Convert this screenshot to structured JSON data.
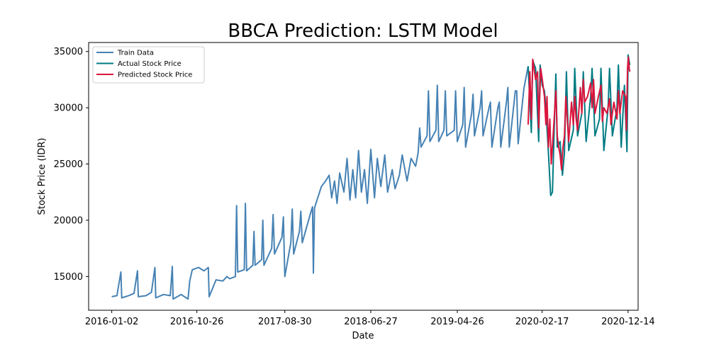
{
  "chart_data": {
    "type": "line",
    "title": "BBCA Prediction: LSTM Model",
    "xlabel": "Date",
    "ylabel": "Stock Price (IDR)",
    "x_ticks": [
      "2016-01-02",
      "2016-10-26",
      "2017-08-30",
      "2018-06-27",
      "2019-04-26",
      "2020-02-17",
      "2020-12-14"
    ],
    "y_ticks": [
      15000,
      20000,
      25000,
      30000,
      35000
    ],
    "xlim": [
      "2015-10-13",
      "2021-01-18"
    ],
    "ylim": [
      12000,
      35800
    ],
    "grid": false,
    "legend_position": "top-left",
    "series": [
      {
        "name": "Train Data",
        "color": "#4682b4",
        "points": [
          [
            "2016-01-02",
            13200
          ],
          [
            "2016-01-20",
            13300
          ],
          [
            "2016-02-03",
            15400
          ],
          [
            "2016-02-06",
            13100
          ],
          [
            "2016-03-01",
            13300
          ],
          [
            "2016-03-20",
            13500
          ],
          [
            "2016-04-01",
            15500
          ],
          [
            "2016-04-04",
            13200
          ],
          [
            "2016-05-01",
            13300
          ],
          [
            "2016-05-20",
            13600
          ],
          [
            "2016-06-01",
            15800
          ],
          [
            "2016-06-04",
            13100
          ],
          [
            "2016-07-01",
            13400
          ],
          [
            "2016-07-25",
            13300
          ],
          [
            "2016-08-01",
            15900
          ],
          [
            "2016-08-04",
            13000
          ],
          [
            "2016-09-01",
            13400
          ],
          [
            "2016-09-25",
            13000
          ],
          [
            "2016-10-01",
            14600
          ],
          [
            "2016-10-10",
            15600
          ],
          [
            "2016-11-01",
            15800
          ],
          [
            "2016-11-20",
            15500
          ],
          [
            "2016-12-05",
            15800
          ],
          [
            "2016-12-08",
            13200
          ],
          [
            "2017-01-01",
            14700
          ],
          [
            "2017-01-25",
            14600
          ],
          [
            "2017-02-08",
            15000
          ],
          [
            "2017-02-18",
            14800
          ],
          [
            "2017-03-10",
            15000
          ],
          [
            "2017-03-14",
            21300
          ],
          [
            "2017-03-18",
            15400
          ],
          [
            "2017-04-10",
            15600
          ],
          [
            "2017-04-14",
            21500
          ],
          [
            "2017-04-18",
            15500
          ],
          [
            "2017-05-10",
            16000
          ],
          [
            "2017-05-14",
            19000
          ],
          [
            "2017-05-18",
            16000
          ],
          [
            "2017-06-10",
            16500
          ],
          [
            "2017-06-14",
            20000
          ],
          [
            "2017-06-18",
            16000
          ],
          [
            "2017-07-15",
            17500
          ],
          [
            "2017-07-20",
            20500
          ],
          [
            "2017-07-25",
            17000
          ],
          [
            "2017-08-20",
            18500
          ],
          [
            "2017-08-25",
            20300
          ],
          [
            "2017-08-30",
            15000
          ],
          [
            "2017-09-20",
            18000
          ],
          [
            "2017-09-25",
            21000
          ],
          [
            "2017-09-30",
            17000
          ],
          [
            "2017-10-20",
            19000
          ],
          [
            "2017-10-25",
            20800
          ],
          [
            "2017-10-30",
            18000
          ],
          [
            "2017-11-30",
            20800
          ],
          [
            "2017-12-05",
            21200
          ],
          [
            "2017-12-08",
            15300
          ],
          [
            "2017-12-12",
            21100
          ],
          [
            "2018-01-05",
            23000
          ],
          [
            "2018-01-20",
            23500
          ],
          [
            "2018-02-01",
            24000
          ],
          [
            "2018-02-10",
            22000
          ],
          [
            "2018-02-20",
            23500
          ],
          [
            "2018-03-01",
            21500
          ],
          [
            "2018-03-10",
            24200
          ],
          [
            "2018-03-25",
            22500
          ],
          [
            "2018-04-05",
            25500
          ],
          [
            "2018-04-15",
            21800
          ],
          [
            "2018-04-25",
            24500
          ],
          [
            "2018-05-05",
            22000
          ],
          [
            "2018-05-15",
            26200
          ],
          [
            "2018-05-25",
            22500
          ],
          [
            "2018-06-05",
            24500
          ],
          [
            "2018-06-15",
            21500
          ],
          [
            "2018-06-27",
            26300
          ],
          [
            "2018-07-10",
            22000
          ],
          [
            "2018-07-20",
            25500
          ],
          [
            "2018-08-01",
            23000
          ],
          [
            "2018-08-15",
            25800
          ],
          [
            "2018-08-25",
            22500
          ],
          [
            "2018-09-10",
            24500
          ],
          [
            "2018-09-20",
            22800
          ],
          [
            "2018-10-05",
            24000
          ],
          [
            "2018-10-15",
            25800
          ],
          [
            "2018-11-01",
            23500
          ],
          [
            "2018-11-15",
            25500
          ],
          [
            "2018-12-01",
            24800
          ],
          [
            "2018-12-10",
            26000
          ],
          [
            "2018-12-15",
            28200
          ],
          [
            "2018-12-20",
            26500
          ],
          [
            "2019-01-10",
            27500
          ],
          [
            "2019-01-15",
            31500
          ],
          [
            "2019-01-20",
            27000
          ],
          [
            "2019-02-10",
            28000
          ],
          [
            "2019-02-15",
            32000
          ],
          [
            "2019-02-20",
            27000
          ],
          [
            "2019-03-10",
            28000
          ],
          [
            "2019-03-15",
            31500
          ],
          [
            "2019-03-20",
            27500
          ],
          [
            "2019-04-15",
            28000
          ],
          [
            "2019-04-20",
            31500
          ],
          [
            "2019-04-26",
            27000
          ],
          [
            "2019-05-15",
            28500
          ],
          [
            "2019-05-20",
            31800
          ],
          [
            "2019-05-25",
            26500
          ],
          [
            "2019-06-15",
            29500
          ],
          [
            "2019-06-20",
            31200
          ],
          [
            "2019-06-25",
            27500
          ],
          [
            "2019-07-15",
            30000
          ],
          [
            "2019-07-20",
            31500
          ],
          [
            "2019-07-25",
            27500
          ],
          [
            "2019-08-15",
            30000
          ],
          [
            "2019-08-20",
            30500
          ],
          [
            "2019-08-25",
            26500
          ],
          [
            "2019-09-15",
            30000
          ],
          [
            "2019-09-20",
            30500
          ],
          [
            "2019-09-25",
            26500
          ],
          [
            "2019-10-15",
            30500
          ],
          [
            "2019-10-20",
            31800
          ],
          [
            "2019-10-25",
            26500
          ],
          [
            "2019-11-15",
            31500
          ],
          [
            "2019-11-20",
            31500
          ],
          [
            "2019-11-25",
            26800
          ],
          [
            "2019-12-15",
            31700
          ],
          [
            "2019-12-30",
            33700
          ]
        ]
      },
      {
        "name": "Actual Stock Price",
        "color": "#007b83",
        "points": [
          [
            "2019-12-30",
            33700
          ],
          [
            "2020-01-10",
            27800
          ],
          [
            "2020-01-15",
            34200
          ],
          [
            "2020-01-25",
            33500
          ],
          [
            "2020-02-05",
            27000
          ],
          [
            "2020-02-10",
            33800
          ],
          [
            "2020-02-17",
            32000
          ],
          [
            "2020-02-25",
            31500
          ],
          [
            "2020-03-01",
            30000
          ],
          [
            "2020-03-10",
            26000
          ],
          [
            "2020-03-18",
            22200
          ],
          [
            "2020-03-24",
            22500
          ],
          [
            "2020-03-30",
            28000
          ],
          [
            "2020-04-05",
            33000
          ],
          [
            "2020-04-10",
            26500
          ],
          [
            "2020-04-20",
            27000
          ],
          [
            "2020-04-28",
            24000
          ],
          [
            "2020-05-05",
            26000
          ],
          [
            "2020-05-12",
            33200
          ],
          [
            "2020-05-20",
            26200
          ],
          [
            "2020-06-05",
            28000
          ],
          [
            "2020-06-10",
            33500
          ],
          [
            "2020-06-20",
            27500
          ],
          [
            "2020-07-05",
            29500
          ],
          [
            "2020-07-10",
            33200
          ],
          [
            "2020-07-20",
            27000
          ],
          [
            "2020-08-05",
            31000
          ],
          [
            "2020-08-10",
            33500
          ],
          [
            "2020-08-20",
            27500
          ],
          [
            "2020-09-05",
            29000
          ],
          [
            "2020-09-10",
            33500
          ],
          [
            "2020-09-20",
            26200
          ],
          [
            "2020-10-05",
            30000
          ],
          [
            "2020-10-10",
            33500
          ],
          [
            "2020-10-20",
            27500
          ],
          [
            "2020-11-05",
            30000
          ],
          [
            "2020-11-10",
            33800
          ],
          [
            "2020-11-20",
            26500
          ],
          [
            "2020-12-01",
            32000
          ],
          [
            "2020-12-10",
            26100
          ],
          [
            "2020-12-14",
            34700
          ],
          [
            "2020-12-20",
            33800
          ]
        ]
      },
      {
        "name": "Predicted Stock Price",
        "color": "#dc143c",
        "points": [
          [
            "2019-12-30",
            28500
          ],
          [
            "2020-01-05",
            33200
          ],
          [
            "2020-01-10",
            29000
          ],
          [
            "2020-01-15",
            34300
          ],
          [
            "2020-01-25",
            32500
          ],
          [
            "2020-02-01",
            33200
          ],
          [
            "2020-02-05",
            28200
          ],
          [
            "2020-02-12",
            33500
          ],
          [
            "2020-02-17",
            32600
          ],
          [
            "2020-02-25",
            31000
          ],
          [
            "2020-03-01",
            28500
          ],
          [
            "2020-03-05",
            31000
          ],
          [
            "2020-03-10",
            26500
          ],
          [
            "2020-03-15",
            29000
          ],
          [
            "2020-03-20",
            25000
          ],
          [
            "2020-03-25",
            27000
          ],
          [
            "2020-03-30",
            29000
          ],
          [
            "2020-04-05",
            31500
          ],
          [
            "2020-04-10",
            27500
          ],
          [
            "2020-04-15",
            26500
          ],
          [
            "2020-04-20",
            25800
          ],
          [
            "2020-04-25",
            24500
          ],
          [
            "2020-04-30",
            26500
          ],
          [
            "2020-05-05",
            27500
          ],
          [
            "2020-05-10",
            31000
          ],
          [
            "2020-05-15",
            29000
          ],
          [
            "2020-05-20",
            27000
          ],
          [
            "2020-05-30",
            30500
          ],
          [
            "2020-06-05",
            28500
          ],
          [
            "2020-06-10",
            31000
          ],
          [
            "2020-06-15",
            29000
          ],
          [
            "2020-06-20",
            28000
          ],
          [
            "2020-06-30",
            31800
          ],
          [
            "2020-07-05",
            29500
          ],
          [
            "2020-07-10",
            32500
          ],
          [
            "2020-07-15",
            30500
          ],
          [
            "2020-07-25",
            31000
          ],
          [
            "2020-08-05",
            32200
          ],
          [
            "2020-08-10",
            30000
          ],
          [
            "2020-08-15",
            32500
          ],
          [
            "2020-08-20",
            29500
          ],
          [
            "2020-09-01",
            31000
          ],
          [
            "2020-09-10",
            32000
          ],
          [
            "2020-09-15",
            28800
          ],
          [
            "2020-09-20",
            30000
          ],
          [
            "2020-10-01",
            29500
          ],
          [
            "2020-10-10",
            30800
          ],
          [
            "2020-10-15",
            28500
          ],
          [
            "2020-10-25",
            30500
          ],
          [
            "2020-11-05",
            29000
          ],
          [
            "2020-11-10",
            31500
          ],
          [
            "2020-11-15",
            29500
          ],
          [
            "2020-11-25",
            31500
          ],
          [
            "2020-12-05",
            31000
          ],
          [
            "2020-12-08",
            28000
          ],
          [
            "2020-12-12",
            33500
          ],
          [
            "2020-12-15",
            34500
          ],
          [
            "2020-12-18",
            33500
          ],
          [
            "2020-12-20",
            33200
          ]
        ]
      }
    ]
  }
}
